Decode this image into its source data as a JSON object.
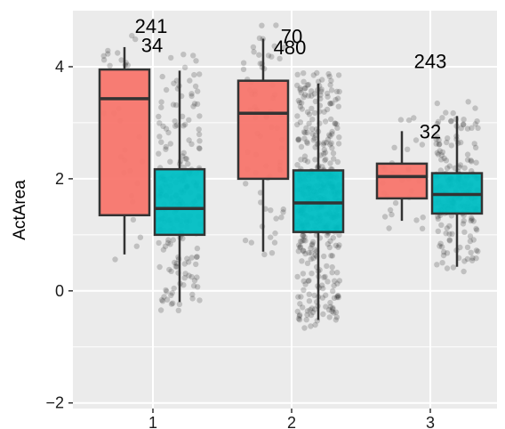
{
  "chart_data": {
    "type": "boxplot",
    "title": "",
    "xlabel": "",
    "ylabel": "ActArea",
    "ylim": [
      -2.1,
      5.0
    ],
    "yticks": [
      -2,
      0,
      2,
      4
    ],
    "categories": [
      "1",
      "2",
      "3"
    ],
    "grid": true,
    "background": "#ebebeb",
    "gridline_color": "#ffffff",
    "jitter_point_color": "#000000",
    "series": [
      {
        "color": "#f8766d",
        "boxes": [
          {
            "category": "1",
            "q1": 1.35,
            "median": 3.43,
            "q3": 3.95,
            "whisker_low": 0.65,
            "whisker_high": 4.35
          },
          {
            "category": "2",
            "q1": 2.0,
            "median": 3.17,
            "q3": 3.75,
            "whisker_low": 0.7,
            "whisker_high": 4.5
          },
          {
            "category": "3",
            "q1": 1.65,
            "median": 2.04,
            "q3": 2.27,
            "whisker_low": 1.25,
            "whisker_high": 2.85
          }
        ]
      },
      {
        "color": "#00bfc4",
        "boxes": [
          {
            "category": "1",
            "q1": 1.0,
            "median": 1.47,
            "q3": 2.17,
            "whisker_low": -0.2,
            "whisker_high": 3.93
          },
          {
            "category": "2",
            "q1": 1.05,
            "median": 1.57,
            "q3": 2.15,
            "whisker_low": -0.52,
            "whisker_high": 3.7
          },
          {
            "category": "3",
            "q1": 1.38,
            "median": 1.72,
            "q3": 2.1,
            "whisker_low": 0.43,
            "whisker_high": 3.12
          }
        ]
      }
    ],
    "annotations": [
      {
        "text": "241",
        "category": "1",
        "y": 4.73
      },
      {
        "text": "34",
        "category": "1",
        "y": 4.39
      },
      {
        "text": "70",
        "category": "2",
        "y": 4.55
      },
      {
        "text": "480",
        "category": "2",
        "y": 4.35
      },
      {
        "text": "243",
        "category": "3",
        "y": 4.1
      },
      {
        "text": "32",
        "category": "3",
        "y": 2.85
      }
    ]
  }
}
